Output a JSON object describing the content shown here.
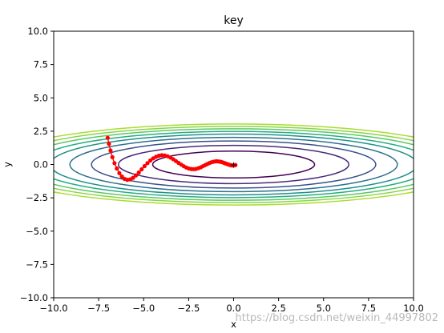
{
  "chart_data": {
    "type": "line",
    "title": "key",
    "xlabel": "x",
    "ylabel": "y",
    "xlim": [
      -10,
      10
    ],
    "ylim": [
      -10,
      10
    ],
    "xticks": [
      "−10.0",
      "−7.5",
      "−5.0",
      "−2.5",
      "0.0",
      "2.5",
      "5.0",
      "7.5",
      "10.0"
    ],
    "yticks": [
      "−10.0",
      "−7.5",
      "−5.0",
      "−2.5",
      "0.0",
      "2.5",
      "5.0",
      "7.5",
      "10.0"
    ],
    "xtick_values": [
      -10,
      -7.5,
      -5,
      -2.5,
      0,
      2.5,
      5,
      7.5,
      10
    ],
    "ytick_values": [
      -10,
      -7.5,
      -5,
      -2.5,
      0,
      2.5,
      5,
      7.5,
      10
    ],
    "grid": false,
    "legend": "none",
    "contours": {
      "function": "x^2/20 + y^2",
      "semi_axes_x": [
        4.5,
        6.4,
        7.9,
        9.1,
        10.2,
        11.1,
        12.0,
        12.8,
        13.6
      ],
      "colors": [
        "#440154",
        "#472c7a",
        "#3b518b",
        "#2c718e",
        "#21908d",
        "#27ad81",
        "#5cc863",
        "#89d548",
        "#aadc32"
      ]
    },
    "series": [
      {
        "color": "#ff0000",
        "marker": "o",
        "x": [
          -7.0,
          -6.93,
          -6.84,
          -6.74,
          -6.62,
          -6.49,
          -6.35,
          -6.21,
          -6.06,
          -5.91,
          -5.75,
          -5.59,
          -5.43,
          -5.27,
          -5.11,
          -4.95,
          -4.79,
          -4.63,
          -4.47,
          -4.31,
          -4.15,
          -3.99,
          -3.83,
          -3.67,
          -3.51,
          -3.36,
          -3.21,
          -3.06,
          -2.91,
          -2.77,
          -2.63,
          -2.49,
          -2.35,
          -2.22,
          -2.09,
          -1.96,
          -1.83,
          -1.71,
          -1.59,
          -1.47,
          -1.36,
          -1.25,
          -1.14,
          -1.04,
          -0.94,
          -0.84,
          -0.75,
          -0.66,
          -0.57,
          -0.49,
          -0.41,
          -0.33,
          -0.26,
          -0.19,
          -0.13,
          -0.07,
          -0.02,
          0.03,
          0.07,
          0.1
        ],
        "y": [
          2.0,
          1.55,
          1.05,
          0.55,
          0.1,
          -0.3,
          -0.65,
          -0.9,
          -1.08,
          -1.15,
          -1.12,
          -1.0,
          -0.82,
          -0.6,
          -0.36,
          -0.12,
          0.1,
          0.3,
          0.46,
          0.58,
          0.66,
          0.7,
          0.68,
          0.62,
          0.52,
          0.4,
          0.26,
          0.12,
          -0.01,
          -0.13,
          -0.23,
          -0.3,
          -0.34,
          -0.35,
          -0.33,
          -0.28,
          -0.21,
          -0.13,
          -0.05,
          0.03,
          0.1,
          0.16,
          0.2,
          0.23,
          0.24,
          0.23,
          0.21,
          0.18,
          0.14,
          0.1,
          0.06,
          0.02,
          -0.01,
          -0.04,
          -0.06,
          -0.07,
          -0.07,
          -0.06,
          -0.05,
          -0.04
        ]
      }
    ]
  },
  "watermark": "https://blog.csdn.net/weixin_44997802"
}
